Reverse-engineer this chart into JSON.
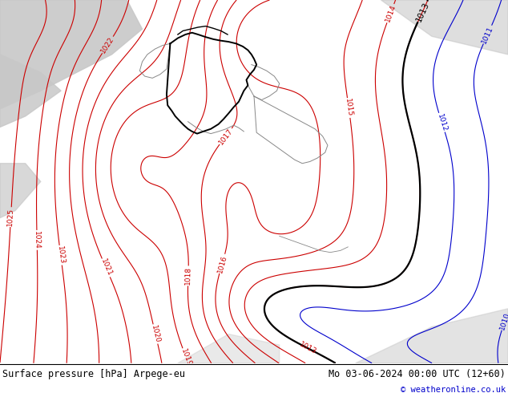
{
  "title_left": "Surface pressure [hPa] Arpege-eu",
  "title_right": "Mo 03-06-2024 00:00 UTC (12+60)",
  "copyright": "© weatheronline.co.uk",
  "bg_green": "#c8e8a0",
  "bg_gray": "#c8c8c8",
  "footer_fontsize": 8.5,
  "copyright_fontsize": 7.5,
  "isobar_fontsize": 6.5,
  "fig_width": 6.34,
  "fig_height": 4.9,
  "dpi": 100,
  "red_color": "#cc0000",
  "black_color": "#000000",
  "blue_color": "#0000cc",
  "gray_line_color": "#888888",
  "thick_line_color": "#000000"
}
